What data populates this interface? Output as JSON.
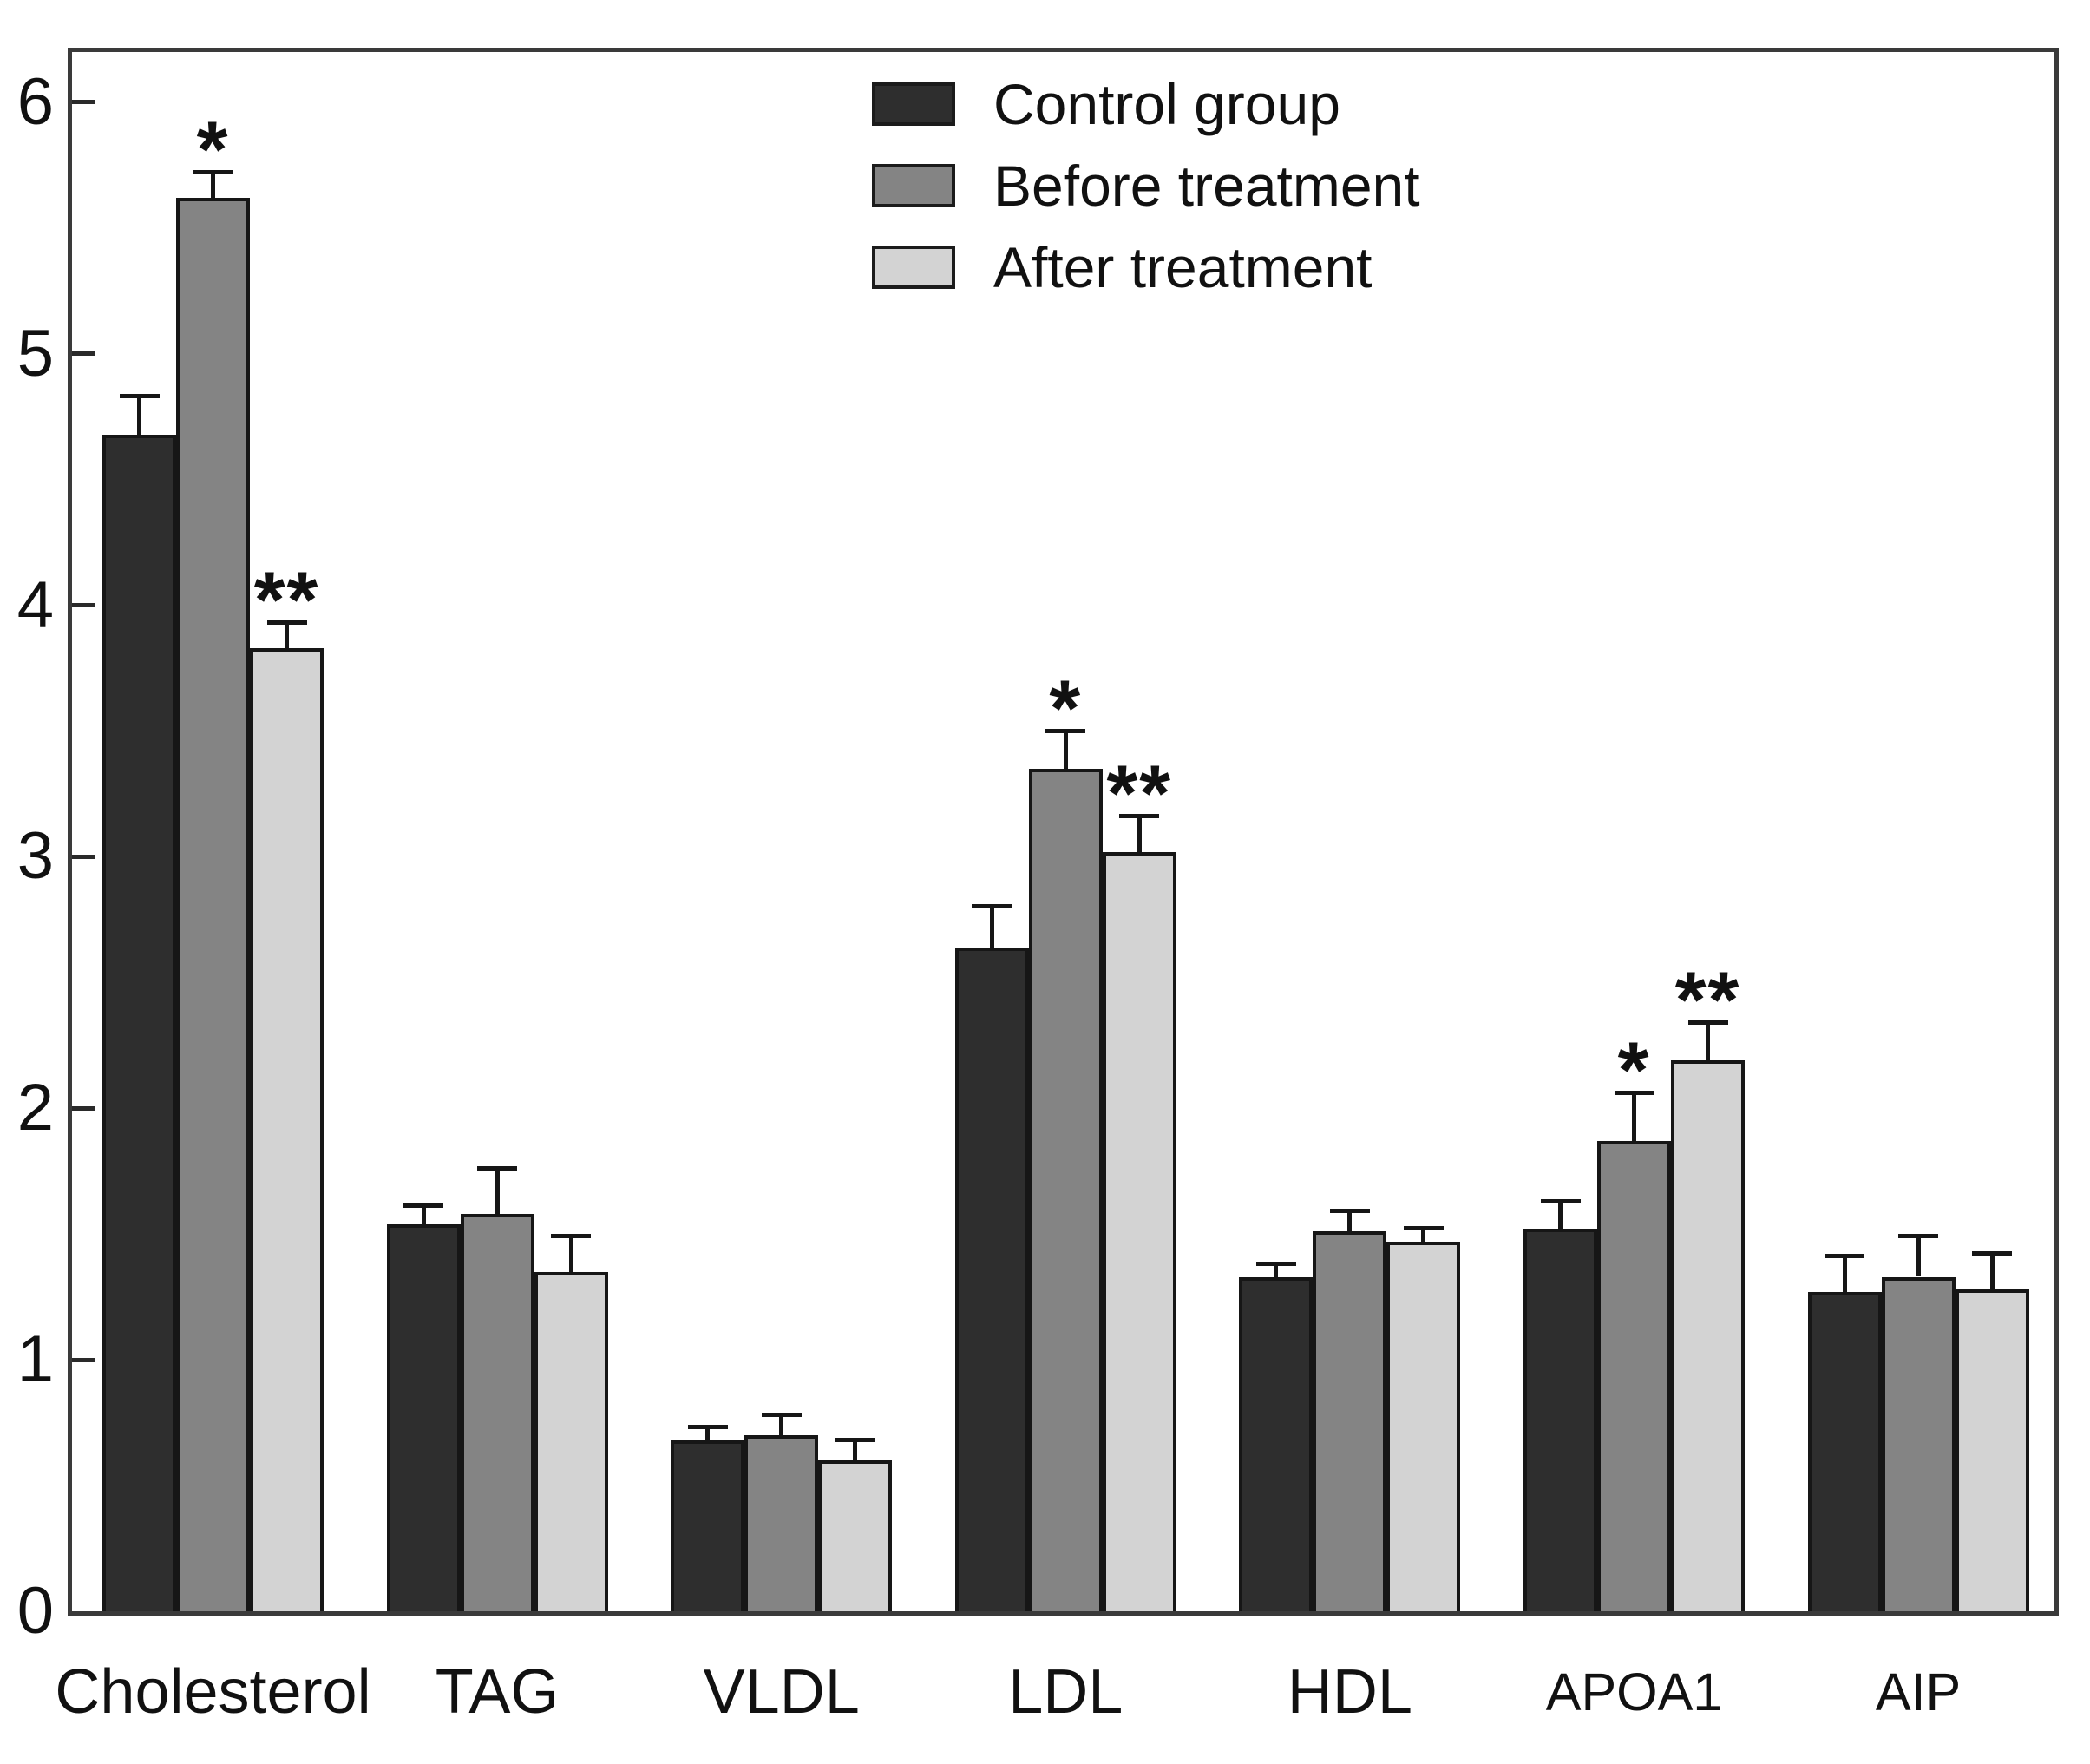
{
  "figure": {
    "background": "#ffffff",
    "frame_color": "#3a3a3a",
    "text_color": "#111111"
  },
  "chart_data": {
    "type": "bar",
    "title": "",
    "xlabel": "",
    "ylabel": "",
    "categories": [
      "Cholesterol",
      "TAG",
      "VLDL",
      "LDL",
      "HDL",
      "APOA1",
      "AIP"
    ],
    "series": [
      {
        "name": "Control group",
        "color": "#2e2e2e",
        "values": [
          4.68,
          1.54,
          0.68,
          2.64,
          1.33,
          1.52,
          1.27
        ],
        "errors": [
          0.15,
          0.07,
          0.05,
          0.16,
          0.05,
          0.11,
          0.14
        ],
        "significance": [
          "",
          "",
          "",
          "",
          "",
          "",
          ""
        ]
      },
      {
        "name": "Before treatment",
        "color": "#848484",
        "values": [
          5.62,
          1.58,
          0.7,
          3.35,
          1.51,
          1.87,
          1.33
        ],
        "errors": [
          0.1,
          0.18,
          0.08,
          0.15,
          0.08,
          0.19,
          0.16
        ],
        "significance": [
          "*",
          "",
          "",
          "*",
          "",
          "*",
          ""
        ]
      },
      {
        "name": "After treatment",
        "color": "#d3d3d3",
        "values": [
          3.83,
          1.35,
          0.6,
          3.02,
          1.47,
          2.19,
          1.28
        ],
        "errors": [
          0.1,
          0.14,
          0.08,
          0.14,
          0.05,
          0.15,
          0.14
        ],
        "significance": [
          "**",
          "",
          "",
          "**",
          "",
          "**",
          ""
        ]
      }
    ],
    "ylim": [
      0,
      6.2
    ],
    "yticks": [
      0,
      1,
      2,
      3,
      4,
      5,
      6
    ],
    "grid": false,
    "error_bars": "upper",
    "bar_border_color": "#161616",
    "error_bar_color": "#161616",
    "legend_position": "top-center-inside"
  }
}
